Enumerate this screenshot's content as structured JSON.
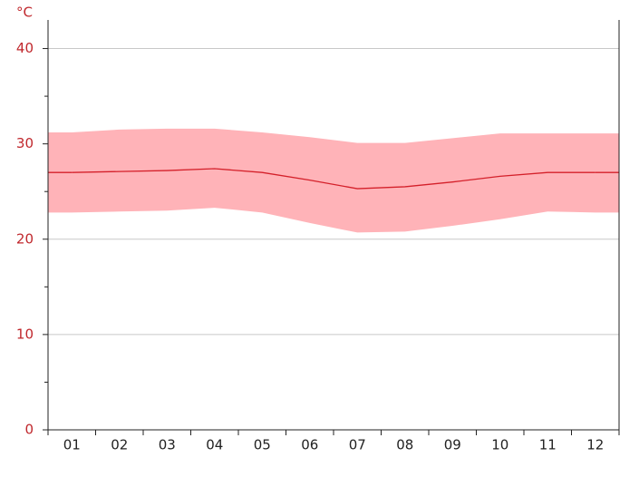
{
  "chart_data": {
    "type": "line",
    "y_label": "°C",
    "categories": [
      "01",
      "02",
      "03",
      "04",
      "05",
      "06",
      "07",
      "08",
      "09",
      "10",
      "11",
      "12"
    ],
    "values": [
      27.0,
      27.1,
      27.2,
      27.4,
      27.0,
      26.2,
      25.3,
      25.5,
      26.0,
      26.6,
      27.0,
      27.0
    ],
    "color": "#d4202a",
    "range": {
      "color": "#ffb3b8",
      "high": [
        31.2,
        31.5,
        31.6,
        31.6,
        31.2,
        30.7,
        30.1,
        30.1,
        30.6,
        31.1,
        31.1,
        31.1
      ],
      "low": [
        22.8,
        22.9,
        23.0,
        23.3,
        22.8,
        21.7,
        20.7,
        20.8,
        21.4,
        22.1,
        22.9,
        22.8
      ]
    },
    "ylim": [
      0,
      43
    ],
    "yticks": [
      0,
      10,
      20,
      30,
      40
    ],
    "yminor": [
      5,
      15,
      25,
      35
    ],
    "grid": true
  }
}
